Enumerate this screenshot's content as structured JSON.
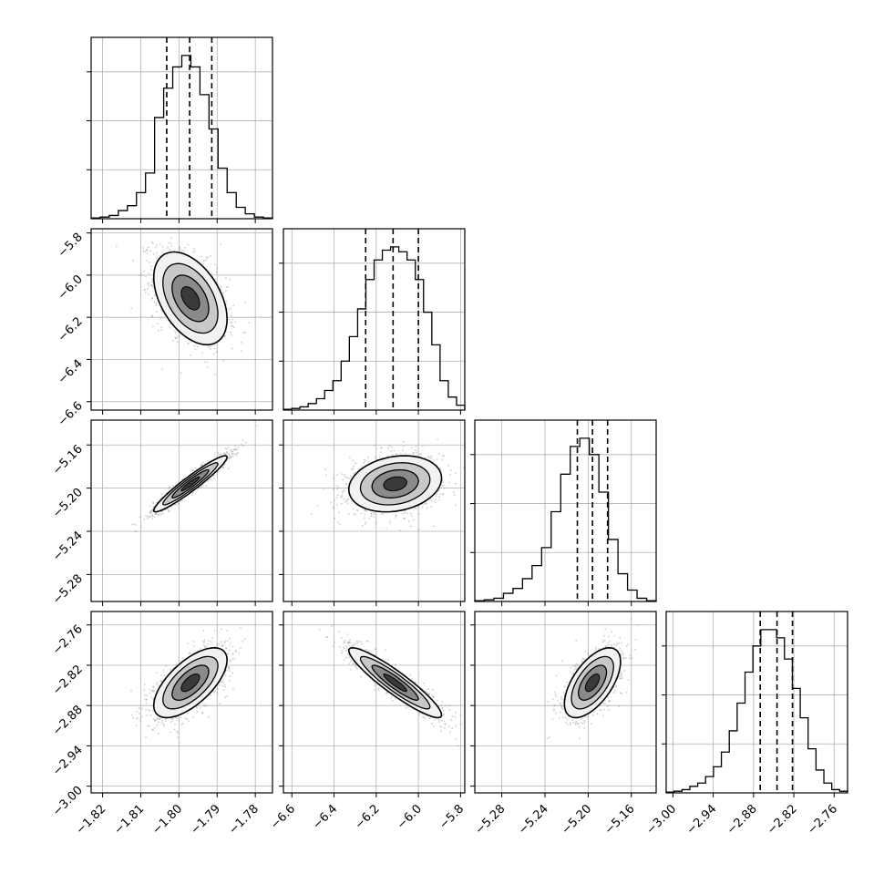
{
  "chart_data": {
    "type": "corner",
    "grid": true,
    "params": [
      {
        "lim": [
          -1.823,
          -1.7755
        ],
        "ticks": [
          -1.82,
          -1.81,
          -1.8,
          -1.79,
          -1.78
        ],
        "labels": [
          "−1.82",
          "−1.81",
          "−1.80",
          "−1.79",
          "−1.78"
        ],
        "quantiles": [
          -1.8032,
          -1.7972,
          -1.7914
        ],
        "mean": -1.797,
        "sd": 0.0048,
        "hist": [
          0.005,
          0.01,
          0.02,
          0.05,
          0.08,
          0.16,
          0.28,
          0.62,
          0.8,
          0.93,
          1.0,
          0.93,
          0.76,
          0.55,
          0.31,
          0.16,
          0.07,
          0.03,
          0.01,
          0.005
        ]
      },
      {
        "lim": [
          -6.64,
          -5.78
        ],
        "ticks": [
          -6.6,
          -6.4,
          -6.2,
          -6.0,
          -5.8
        ],
        "labels": [
          "−6.6",
          "−6.4",
          "−6.2",
          "−6.0",
          "−5.8"
        ],
        "quantiles": [
          -6.25,
          -6.12,
          -6.0
        ],
        "mean": -6.11,
        "sd": 0.11,
        "hist": [
          0.005,
          0.01,
          0.02,
          0.04,
          0.07,
          0.12,
          0.18,
          0.3,
          0.45,
          0.62,
          0.8,
          0.92,
          0.98,
          1.0,
          0.97,
          0.92,
          0.8,
          0.6,
          0.4,
          0.18,
          0.08,
          0.03
        ]
      },
      {
        "lim": [
          -5.305,
          -5.137
        ],
        "ticks": [
          -5.28,
          -5.24,
          -5.2,
          -5.16
        ],
        "labels": [
          "−5.28",
          "−5.24",
          "−5.20",
          "−5.16"
        ],
        "quantiles": [
          -5.21,
          -5.196,
          -5.182
        ],
        "mean": -5.196,
        "sd": 0.013,
        "hist": [
          0.005,
          0.01,
          0.02,
          0.05,
          0.08,
          0.14,
          0.22,
          0.33,
          0.55,
          0.78,
          0.95,
          1.0,
          0.9,
          0.67,
          0.38,
          0.17,
          0.07,
          0.02,
          0.005
        ]
      },
      {
        "lim": [
          -3.01,
          -2.74
        ],
        "ticks": [
          -3.0,
          -2.94,
          -2.88,
          -2.82,
          -2.76
        ],
        "labels": [
          "−3.00",
          "−2.94",
          "−2.88",
          "−2.82",
          "−2.76"
        ],
        "quantiles": [
          -2.87,
          -2.845,
          -2.822
        ],
        "mean": -2.846,
        "sd": 0.026,
        "hist": [
          0.005,
          0.01,
          0.02,
          0.04,
          0.06,
          0.1,
          0.16,
          0.25,
          0.38,
          0.55,
          0.74,
          0.9,
          1.0,
          1.0,
          0.95,
          0.82,
          0.64,
          0.46,
          0.27,
          0.14,
          0.06,
          0.02,
          0.01
        ]
      }
    ],
    "correlations": [
      [
        null,
        null,
        null,
        null
      ],
      [
        -0.45,
        null,
        null,
        null
      ],
      [
        0.95,
        0.2,
        null,
        null
      ],
      [
        0.65,
        -0.92,
        0.6,
        null
      ]
    ]
  }
}
